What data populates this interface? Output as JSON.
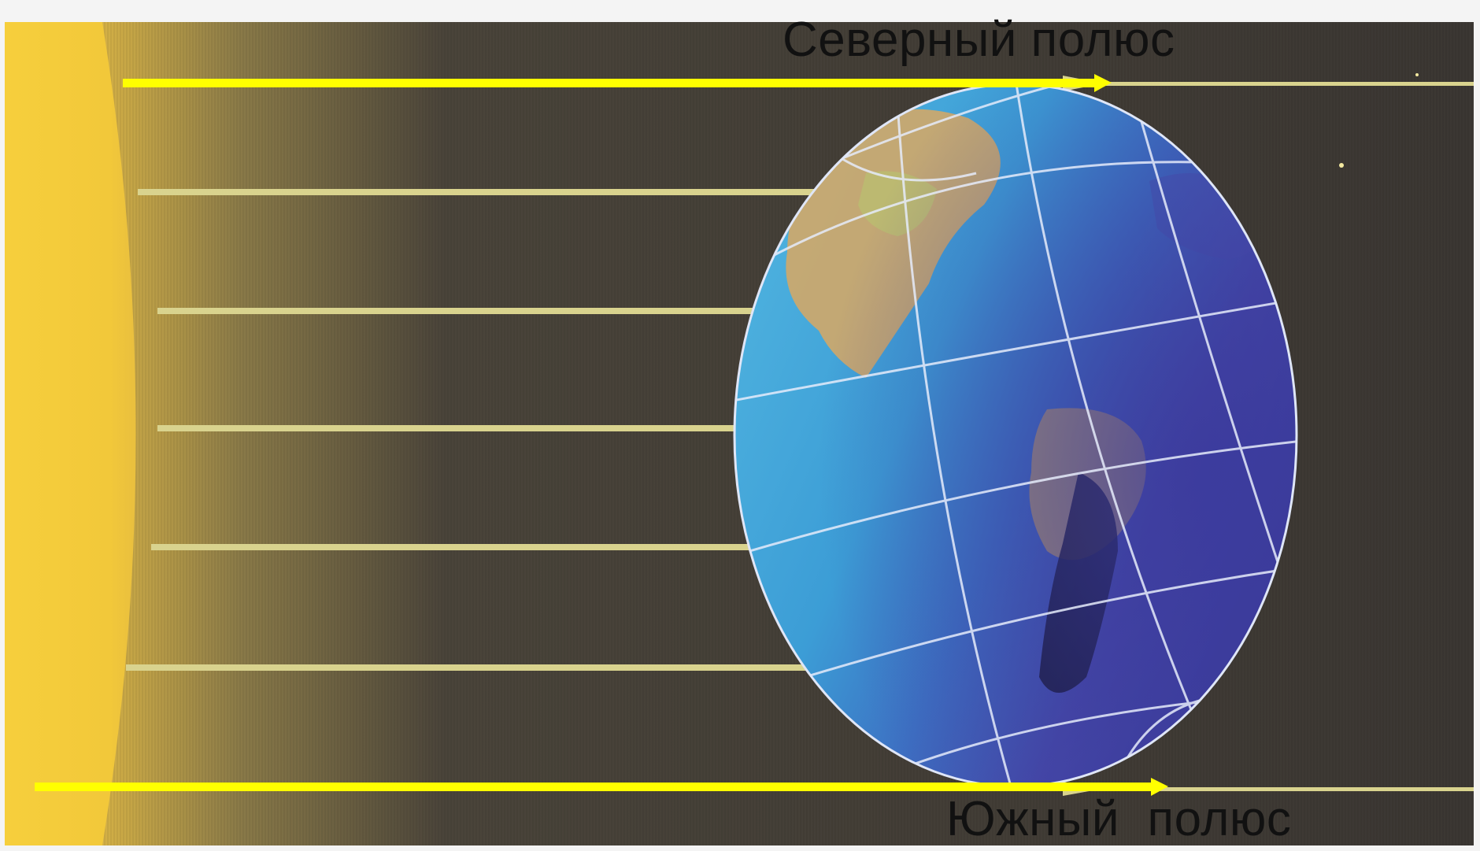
{
  "labels": {
    "north_pole": "Северный полюс",
    "south_pole": "Южный  полюс"
  },
  "colors": {
    "background": "#3a3633",
    "sun": "#f3c93a",
    "ray": "#d7cf86",
    "highlight_ray": "#ffff00",
    "ocean": "#3ea3d8",
    "night_side": "#3b3fa0",
    "land": "#d8a863",
    "grid_lines": "#e8eefc"
  },
  "icons": {
    "sun": "sun-icon",
    "earth": "earth-globe-icon"
  }
}
